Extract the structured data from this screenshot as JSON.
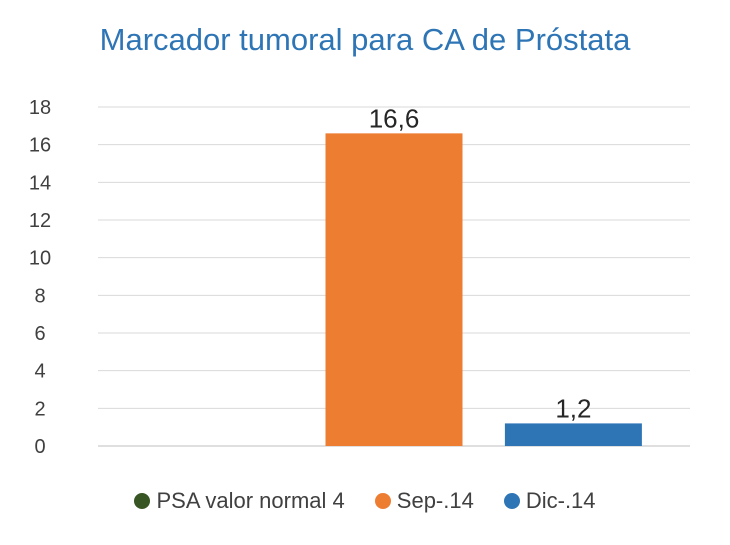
{
  "chart_data": {
    "type": "bar",
    "title": "Marcador tumoral para CA de Próstata",
    "xlabel": "",
    "ylabel": "",
    "ylim": [
      0,
      18
    ],
    "yticks": [
      0,
      2,
      4,
      6,
      8,
      10,
      12,
      14,
      16,
      18
    ],
    "grid": true,
    "legend_position": "bottom",
    "series": [
      {
        "name": "PSA valor normal 4",
        "value": null,
        "label": "",
        "color": "#375623"
      },
      {
        "name": "Sep-.14",
        "value": 16.6,
        "label": "16,6",
        "color": "#ed7d31"
      },
      {
        "name": "Dic-.14",
        "value": 1.2,
        "label": "1,2",
        "color": "#2e75b6"
      }
    ]
  }
}
